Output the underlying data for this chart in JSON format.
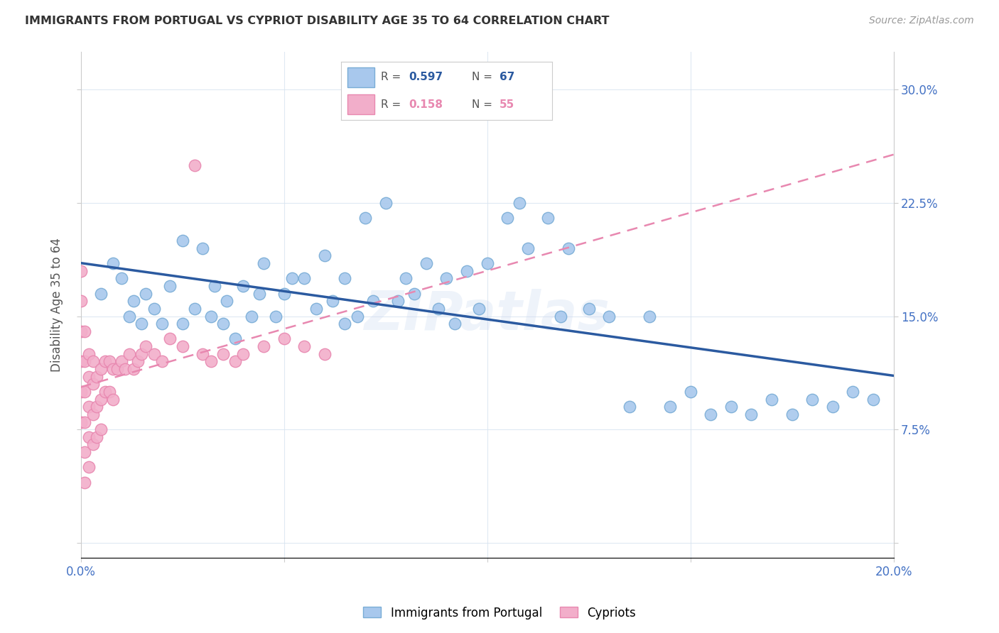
{
  "title": "IMMIGRANTS FROM PORTUGAL VS CYPRIOT DISABILITY AGE 35 TO 64 CORRELATION CHART",
  "source": "Source: ZipAtlas.com",
  "ylabel_label": "Disability Age 35 to 64",
  "xlim": [
    0.0,
    0.2
  ],
  "ylim": [
    -0.01,
    0.325
  ],
  "x_tick_positions": [
    0.0,
    0.05,
    0.1,
    0.15,
    0.2
  ],
  "x_tick_labels": [
    "0.0%",
    "",
    "",
    "",
    "20.0%"
  ],
  "y_tick_positions": [
    0.0,
    0.075,
    0.15,
    0.225,
    0.3
  ],
  "y_tick_labels": [
    "",
    "7.5%",
    "15.0%",
    "22.5%",
    "30.0%"
  ],
  "blue_color": "#A8C8ED",
  "blue_edge_color": "#7AADD6",
  "pink_color": "#F2AECA",
  "pink_edge_color": "#E888B0",
  "blue_line_color": "#2B5AA0",
  "pink_line_color": "#E888B0",
  "tick_label_color": "#4472C4",
  "watermark": "ZIPatlas",
  "blue_x": [
    0.005,
    0.008,
    0.01,
    0.012,
    0.013,
    0.015,
    0.016,
    0.018,
    0.02,
    0.022,
    0.025,
    0.025,
    0.028,
    0.03,
    0.032,
    0.033,
    0.035,
    0.036,
    0.038,
    0.04,
    0.042,
    0.044,
    0.045,
    0.048,
    0.05,
    0.052,
    0.055,
    0.058,
    0.06,
    0.062,
    0.065,
    0.065,
    0.068,
    0.07,
    0.072,
    0.075,
    0.078,
    0.08,
    0.082,
    0.085,
    0.088,
    0.09,
    0.092,
    0.095,
    0.098,
    0.1,
    0.105,
    0.108,
    0.11,
    0.115,
    0.118,
    0.12,
    0.125,
    0.13,
    0.135,
    0.14,
    0.145,
    0.15,
    0.155,
    0.16,
    0.165,
    0.17,
    0.175,
    0.18,
    0.185,
    0.19,
    0.195
  ],
  "blue_y": [
    0.165,
    0.185,
    0.175,
    0.15,
    0.16,
    0.145,
    0.165,
    0.155,
    0.145,
    0.17,
    0.145,
    0.2,
    0.155,
    0.195,
    0.15,
    0.17,
    0.145,
    0.16,
    0.135,
    0.17,
    0.15,
    0.165,
    0.185,
    0.15,
    0.165,
    0.175,
    0.175,
    0.155,
    0.19,
    0.16,
    0.145,
    0.175,
    0.15,
    0.215,
    0.16,
    0.225,
    0.16,
    0.175,
    0.165,
    0.185,
    0.155,
    0.175,
    0.145,
    0.18,
    0.155,
    0.185,
    0.215,
    0.225,
    0.195,
    0.215,
    0.15,
    0.195,
    0.155,
    0.15,
    0.09,
    0.15,
    0.09,
    0.1,
    0.085,
    0.09,
    0.085,
    0.095,
    0.085,
    0.095,
    0.09,
    0.1,
    0.095
  ],
  "pink_x": [
    0.0,
    0.0,
    0.0,
    0.0,
    0.0,
    0.0,
    0.001,
    0.001,
    0.001,
    0.001,
    0.001,
    0.001,
    0.002,
    0.002,
    0.002,
    0.002,
    0.002,
    0.003,
    0.003,
    0.003,
    0.003,
    0.004,
    0.004,
    0.004,
    0.005,
    0.005,
    0.005,
    0.006,
    0.006,
    0.007,
    0.007,
    0.008,
    0.008,
    0.009,
    0.01,
    0.011,
    0.012,
    0.013,
    0.014,
    0.015,
    0.016,
    0.018,
    0.02,
    0.022,
    0.025,
    0.028,
    0.03,
    0.032,
    0.035,
    0.038,
    0.04,
    0.045,
    0.05,
    0.055,
    0.06
  ],
  "pink_y": [
    0.18,
    0.16,
    0.14,
    0.12,
    0.1,
    0.08,
    0.14,
    0.12,
    0.1,
    0.08,
    0.06,
    0.04,
    0.125,
    0.11,
    0.09,
    0.07,
    0.05,
    0.12,
    0.105,
    0.085,
    0.065,
    0.11,
    0.09,
    0.07,
    0.115,
    0.095,
    0.075,
    0.12,
    0.1,
    0.12,
    0.1,
    0.115,
    0.095,
    0.115,
    0.12,
    0.115,
    0.125,
    0.115,
    0.12,
    0.125,
    0.13,
    0.125,
    0.12,
    0.135,
    0.13,
    0.25,
    0.125,
    0.12,
    0.125,
    0.12,
    0.125,
    0.13,
    0.135,
    0.13,
    0.125
  ]
}
